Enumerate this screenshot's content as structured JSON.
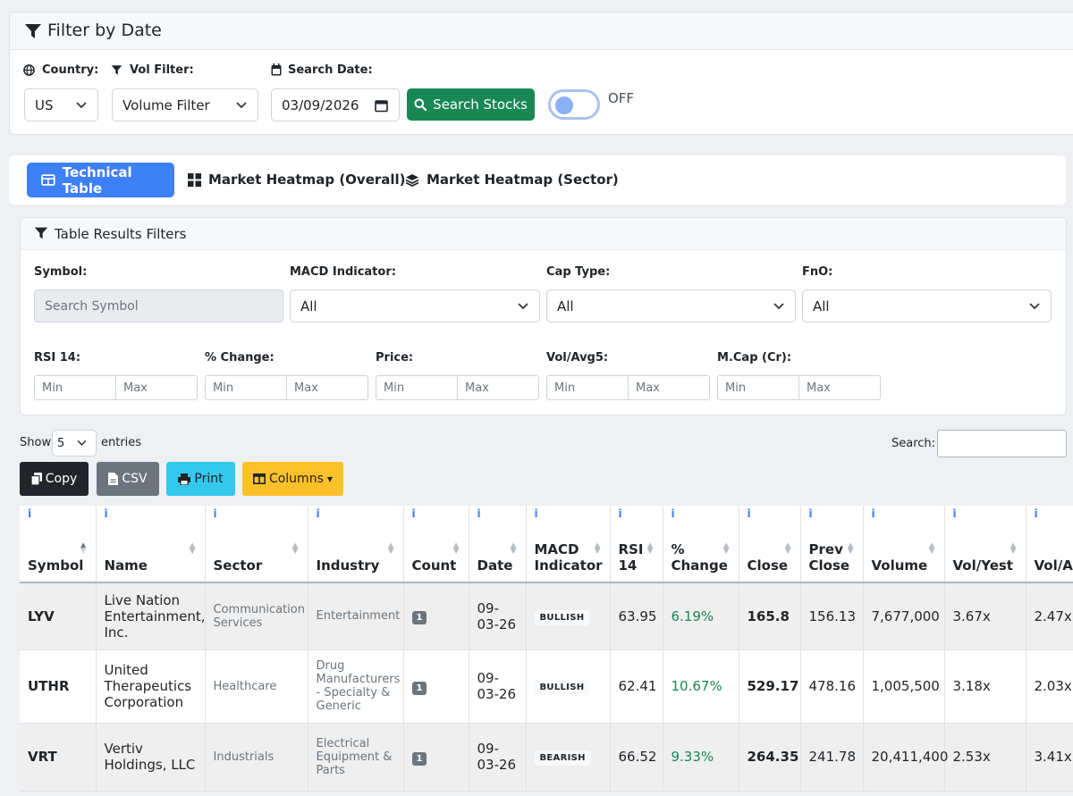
{
  "filter_card": {
    "title": "Filter by Date",
    "country_label": "Country:",
    "country_value": "US",
    "vol_label": "Vol Filter:",
    "vol_value": "Volume Filter",
    "date_label": "Search Date:",
    "date_value": "03/09/2026",
    "search_button": "Search Stocks",
    "toggle_state": "OFF"
  },
  "tabs": [
    {
      "label": "Technical Table",
      "icon": "table-icon",
      "active": true
    },
    {
      "label": "Market Heatmap (Overall)",
      "icon": "grid-icon",
      "active": false
    },
    {
      "label": "Market Heatmap (Sector)",
      "icon": "layers-icon",
      "active": false
    }
  ],
  "results_filters": {
    "title": "Table Results Filters",
    "symbol_label": "Symbol:",
    "symbol_placeholder": "Search Symbol",
    "macd_label": "MACD Indicator:",
    "macd_value": "All",
    "cap_label": "Cap Type:",
    "cap_value": "All",
    "fno_label": "FnO:",
    "fno_value": "All",
    "ranges": [
      {
        "label": "RSI 14:",
        "min": "Min",
        "max": "Max"
      },
      {
        "label": "% Change:",
        "min": "Min",
        "max": "Max"
      },
      {
        "label": "Price:",
        "min": "Min",
        "max": "Max"
      },
      {
        "label": "Vol/Avg5:",
        "min": "Min",
        "max": "Max"
      },
      {
        "label": "M.Cap (Cr):",
        "min": "Min",
        "max": "Max"
      }
    ]
  },
  "entries": {
    "show": "Show",
    "value": "5",
    "suffix": "entries",
    "search_label": "Search:"
  },
  "toolbar": {
    "copy": "Copy",
    "csv": "CSV",
    "print": "Print",
    "columns": "Columns"
  },
  "colors": {
    "primary": "#3d7ff5",
    "success": "#198754",
    "dark": "#212529",
    "secondary": "#6c757d",
    "info": "#33c8ec",
    "warning": "#fcc02b"
  },
  "table": {
    "headers": [
      "Symbol",
      "Name",
      "Sector",
      "Industry",
      "Count",
      "Date",
      "MACD Indicator",
      "RSI 14",
      "% Change",
      "Close",
      "Prev Close",
      "Volume",
      "Vol/Yest",
      "Vol/A"
    ],
    "rows": [
      {
        "symbol": "LYV",
        "name": "Live Nation Entertainment, Inc.",
        "sector": "Communication Services",
        "industry": "Entertainment",
        "count": "1",
        "date": "09-03-26",
        "macd": "BULLISH",
        "rsi": "63.95",
        "change": "6.19%",
        "close": "165.8",
        "prev_close": "156.13",
        "volume": "7,677,000",
        "vol_yest": "3.67x",
        "vol_avg": "2.47x"
      },
      {
        "symbol": "UTHR",
        "name": "United Therapeutics Corporation",
        "sector": "Healthcare",
        "industry": "Drug Manufacturers - Specialty & Generic",
        "count": "1",
        "date": "09-03-26",
        "macd": "BULLISH",
        "rsi": "62.41",
        "change": "10.67%",
        "close": "529.17",
        "prev_close": "478.16",
        "volume": "1,005,500",
        "vol_yest": "3.18x",
        "vol_avg": "2.03x"
      },
      {
        "symbol": "VRT",
        "name": "Vertiv Holdings, LLC",
        "sector": "Industrials",
        "industry": "Electrical Equipment & Parts",
        "count": "1",
        "date": "09-03-26",
        "macd": "BEARISH",
        "rsi": "66.52",
        "change": "9.33%",
        "close": "264.35",
        "prev_close": "241.78",
        "volume": "20,411,400",
        "vol_yest": "2.53x",
        "vol_avg": "3.41x"
      }
    ]
  }
}
